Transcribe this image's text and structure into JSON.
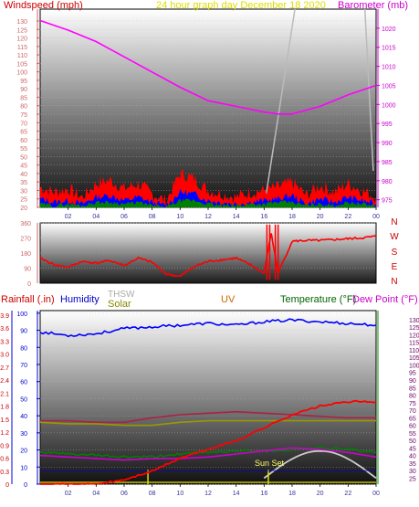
{
  "chart_data": [
    {
      "type": "line",
      "panel": "wind-barometer",
      "title": "24 hour graph day   December 18 2020",
      "left_label": "Windspeed (mph)",
      "right_label": "Barometer (mb)",
      "x_ticks": [
        "02",
        "04",
        "06",
        "08",
        "10",
        "12",
        "14",
        "16",
        "18",
        "20",
        "22",
        "00"
      ],
      "left_ticks": [
        "20",
        "25",
        "30",
        "35",
        "40",
        "45",
        "50",
        "55",
        "60",
        "65",
        "70",
        "75",
        "80",
        "85",
        "90",
        "95",
        "100",
        "105",
        "110",
        "115",
        "120",
        "125",
        "130"
      ],
      "right_ticks": [
        "975",
        "980",
        "985",
        "990",
        "995",
        "1000",
        "1005",
        "1010",
        "1015",
        "1020"
      ],
      "left_ylim": [
        20,
        137
      ],
      "right_ylim": [
        973,
        1025
      ],
      "barometer_x": [
        0,
        2,
        4,
        6,
        8,
        10,
        12,
        14,
        16,
        17,
        18,
        20,
        22,
        24
      ],
      "barometer": [
        1022,
        1019.5,
        1016.5,
        1012.5,
        1008.5,
        1004.5,
        1001,
        999.5,
        998,
        997.5,
        997.5,
        999.5,
        1002.5,
        1005
      ],
      "wind_gust_x": [
        0,
        1,
        2,
        3,
        4,
        5,
        6,
        7,
        8,
        9,
        10,
        11,
        12,
        13,
        14,
        15,
        16,
        17,
        18,
        19,
        20,
        21,
        22,
        23,
        24
      ],
      "wind_gust": [
        32,
        29,
        31,
        26,
        34,
        36,
        31,
        34,
        28,
        24,
        40,
        37,
        30,
        28,
        26,
        29,
        30,
        32,
        35,
        27,
        33,
        29,
        34,
        30,
        26
      ],
      "wind_avg": [
        25,
        23,
        24,
        22,
        26,
        27,
        24,
        26,
        23,
        21,
        29,
        28,
        24,
        23,
        22,
        23,
        24,
        25,
        27,
        22,
        25,
        23,
        26,
        24,
        22
      ],
      "wind_low": [
        22,
        21,
        22,
        21,
        23,
        23,
        22,
        23,
        21,
        20,
        24,
        24,
        22,
        21,
        21,
        22,
        22,
        23,
        23,
        21,
        22,
        21,
        23,
        22,
        21
      ],
      "colors": {
        "gust": "#ff0000",
        "avg": "#0000ff",
        "low": "#008000",
        "barometer": "#ff00ff",
        "sun": "#bbbbbb"
      }
    },
    {
      "type": "line",
      "panel": "wind-direction",
      "left_ticks": [
        "0",
        "90",
        "180",
        "270",
        "360"
      ],
      "right_labels": [
        "N",
        "W",
        "S",
        "E",
        "N"
      ],
      "ylim": [
        0,
        360
      ],
      "x": [
        0,
        1,
        2,
        3,
        4,
        5,
        6,
        7,
        8,
        9,
        10,
        11,
        12,
        13,
        14,
        15,
        16,
        16.5,
        17,
        18,
        19,
        20,
        21,
        22,
        23,
        24
      ],
      "direction": [
        150,
        110,
        95,
        130,
        120,
        135,
        105,
        150,
        125,
        55,
        40,
        100,
        130,
        140,
        150,
        110,
        60,
        300,
        60,
        250,
        255,
        255,
        260,
        265,
        270,
        280
      ],
      "color": "#ff0000"
    },
    {
      "type": "line",
      "panel": "rain-humidity-temperature",
      "labels": {
        "rainfall": "Rainfall (.in)",
        "humidity": "Humidity",
        "thsw": "THSW",
        "solar": "Solar",
        "uv": "UV",
        "temperature": "Temperature (°F)",
        "dewpoint": "Dew Point (°F)",
        "sunset": "Sun Set"
      },
      "left_ticks": [
        "0",
        "0.3",
        "0.6",
        "0.9",
        "1.2",
        "1.5",
        "1.8",
        "2.1",
        "2.4",
        "2.7",
        "3.0",
        "3.3",
        "3.6",
        "3.9"
      ],
      "humidity_ticks": [
        "0",
        "10",
        "20",
        "30",
        "40",
        "50",
        "60",
        "70",
        "80",
        "90",
        "100"
      ],
      "right_ticks": [
        "25",
        "30",
        "35",
        "40",
        "45",
        "50",
        "55",
        "60",
        "65",
        "70",
        "75",
        "80",
        "85",
        "90",
        "95",
        "100",
        "105",
        "110",
        "115",
        "120",
        "125",
        "130"
      ],
      "rain_ylim": [
        0,
        4.0
      ],
      "temp_ylim": [
        21,
        136
      ],
      "x": [
        0,
        2,
        4,
        6,
        8,
        10,
        12,
        14,
        16,
        18,
        20,
        22,
        24
      ],
      "humidity": [
        89,
        87,
        88,
        91,
        92,
        93,
        94,
        93,
        95,
        96,
        95,
        94,
        93
      ],
      "rainfall": [
        0,
        0,
        0,
        0.1,
        0.3,
        0.6,
        0.8,
        1.0,
        1.3,
        1.6,
        1.8,
        1.9,
        1.9
      ],
      "temperature": [
        42,
        41,
        40,
        39,
        39,
        41,
        42,
        43,
        43,
        44,
        45,
        44,
        42
      ],
      "dewpoint": [
        40,
        39,
        38,
        37,
        38,
        38,
        39,
        41,
        43,
        45,
        44,
        42,
        39
      ],
      "thsw": [
        62,
        61,
        61,
        60,
        60,
        62,
        63,
        63,
        63,
        63,
        63,
        63,
        63
      ],
      "uv_line": [
        63,
        63,
        62,
        62,
        65,
        67,
        68,
        69,
        68,
        67,
        66,
        65,
        65
      ],
      "solar_x": [
        16,
        17,
        18,
        19,
        20,
        21,
        22,
        23,
        24
      ],
      "solar": [
        25,
        35,
        39,
        42,
        43,
        42,
        39,
        33,
        25
      ],
      "colors": {
        "humidity": "#0000ff",
        "rainfall": "#ff0000",
        "temperature": "#008000",
        "dewpoint": "#cc00cc",
        "thsw": "#999900",
        "uv": "#aa2244",
        "solar": "#cccccc"
      }
    }
  ]
}
